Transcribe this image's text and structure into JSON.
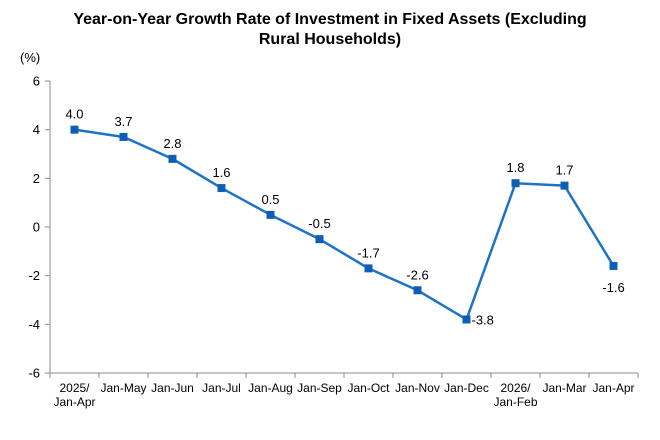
{
  "chart_data": {
    "type": "line",
    "title_line1": "Year-on-Year Growth Rate of Investment in Fixed Assets (Excluding",
    "title_line2": "Rural Households)",
    "unit": "(%)",
    "categories": [
      [
        "2025/",
        "Jan-Apr"
      ],
      [
        "Jan-May"
      ],
      [
        "Jan-Jun"
      ],
      [
        "Jan-Jul"
      ],
      [
        "Jan-Aug"
      ],
      [
        "Jan-Sep"
      ],
      [
        "Jan-Oct"
      ],
      [
        "Jan-Nov"
      ],
      [
        "Jan-Dec"
      ],
      [
        "2026/",
        "Jan-Feb"
      ],
      [
        "Jan-Mar"
      ],
      [
        "Jan-Apr"
      ]
    ],
    "series": [
      {
        "values": [
          4.0,
          3.7,
          2.8,
          1.6,
          0.5,
          -0.5,
          -1.7,
          -2.6,
          -3.8,
          1.8,
          1.7,
          -1.6
        ],
        "labels": [
          "4.0",
          "3.7",
          "2.8",
          "1.6",
          "0.5",
          "-0.5",
          "-1.7",
          "-2.6",
          "-3.8",
          "1.8",
          "1.7",
          "-1.6"
        ]
      }
    ],
    "ylim": [
      -6,
      6
    ],
    "yticks": [
      6,
      4,
      2,
      0,
      -2,
      -4,
      -6
    ],
    "segment_breaks_after": [
      8
    ],
    "grid": false,
    "legend": "none",
    "colors": {
      "line": "#1E73C8",
      "marker": "#0E5FB4",
      "axis": "#8C8C8C",
      "text": "#000000"
    }
  }
}
